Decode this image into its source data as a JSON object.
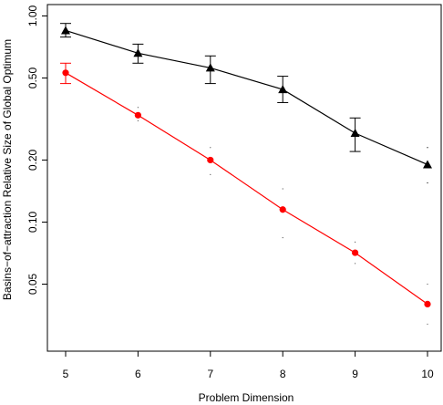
{
  "chart_data": {
    "type": "line",
    "title": "",
    "xlabel": "Problem Dimension",
    "ylabel": "Basins−of−attraction Relative Size of Global Optimum",
    "x": [
      5,
      6,
      7,
      8,
      9,
      10
    ],
    "x_ticks": [
      "5",
      "6",
      "7",
      "8",
      "9",
      "10"
    ],
    "xlim": [
      5,
      10
    ],
    "ylim": [
      0.023,
      1.05
    ],
    "y_scale": "log",
    "y_ticks": [
      {
        "value": 0.05,
        "label": "0.05"
      },
      {
        "value": 0.1,
        "label": "0.10"
      },
      {
        "value": 0.2,
        "label": "0.20"
      },
      {
        "value": 0.5,
        "label": "0.50"
      },
      {
        "value": 1.0,
        "label": "1.00"
      }
    ],
    "grid": false,
    "legend": "none",
    "series": [
      {
        "color": "#000000",
        "marker": "triangle",
        "values": [
          0.85,
          0.66,
          0.56,
          0.44,
          0.27,
          0.19
        ],
        "err_low": [
          0.79,
          0.59,
          0.47,
          0.38,
          0.22,
          0.155
        ],
        "err_high": [
          0.92,
          0.73,
          0.64,
          0.51,
          0.32,
          0.23
        ],
        "err_bars": [
          true,
          true,
          true,
          true,
          true,
          false
        ]
      },
      {
        "color": "#ff0000",
        "marker": "circle",
        "values": [
          0.53,
          0.33,
          0.2,
          0.115,
          0.071,
          0.04
        ],
        "err_low": [
          0.47,
          0.31,
          0.17,
          0.084,
          0.063,
          0.032
        ],
        "err_high": [
          0.59,
          0.36,
          0.23,
          0.145,
          0.08,
          0.05
        ],
        "err_bars": [
          true,
          false,
          false,
          false,
          false,
          false
        ]
      }
    ]
  }
}
